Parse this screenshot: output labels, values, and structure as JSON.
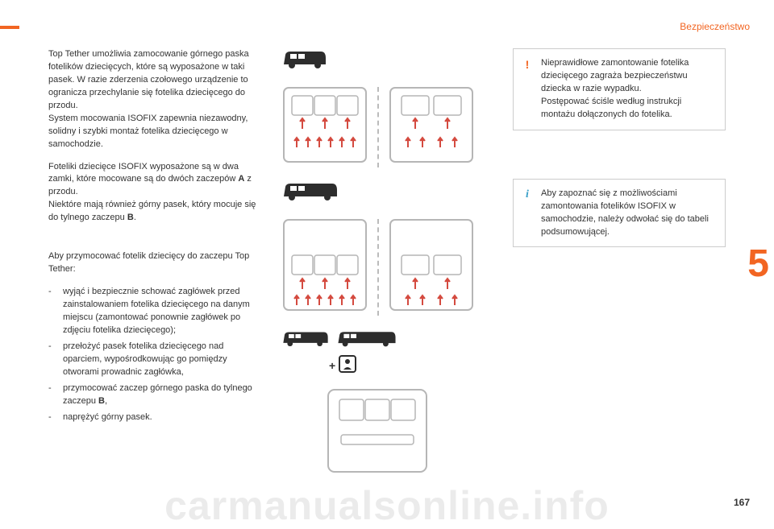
{
  "section_label": "Bezpieczeństwo",
  "chapter_number": "5",
  "page_number": "167",
  "watermark": "carmanualsonline.info",
  "left_column": {
    "p1": "Top Tether umożliwia zamocowanie górnego paska fotelików dziecięcych, które są wyposażone w taki pasek. W razie zderzenia czołowego urządzenie to ogranicza przechylanie się fotelika dziecięcego do przodu.\nSystem mocowania ISOFIX zapewnia niezawodny, solidny i szybki montaż fotelika dziecięcego w samochodzie.",
    "p2_pre": "Foteliki dziecięce ISOFIX wyposażone są w dwa zamki, które mocowane są do dwóch zaczepów ",
    "p2_bold_a": "A",
    "p2_mid": " z przodu.\nNiektóre mają również górny pasek, który mocuje się do tylnego zaczepu ",
    "p2_bold_b": "B",
    "p2_end": ".",
    "p3": "Aby przymocować fotelik dziecięcy do zaczepu Top Tether:",
    "li1": "wyjąć i bezpiecznie schować zagłówek przed zainstalowaniem fotelika dziecięcego na danym miejscu (zamontować ponownie zagłówek po zdjęciu fotelika dziecięcego);",
    "li2": "przełożyć pasek fotelika dziecięcego nad oparciem, wypośrodkowując go pomiędzy otworami prowadnic zagłówka,",
    "li3_pre": "przymocować zaczep górnego paska do tylnego zaczepu ",
    "li3_bold": "B",
    "li3_end": ",",
    "li4": "naprężyć górny pasek."
  },
  "right_column": {
    "warn": "Nieprawidłowe zamontowanie fotelika dziecięcego zagraża bezpieczeństwu dziecka w razie wypadku.\nPostępować ściśle według instrukcji montażu dołączonych do fotelika.",
    "info": "Aby zapoznać się z możliwościami zamontowania fotelików ISOFIX w samochodzie, należy odwołać się do tabeli podsumowującej."
  },
  "diagrams": {
    "van_small_doors": 2,
    "van_mid_doors": 2,
    "plus_symbol": "+",
    "seat_color_outline": "#b6b6b6",
    "seat_color_arrow": "#d44a3f",
    "van_fill": "#2d2d2d"
  }
}
